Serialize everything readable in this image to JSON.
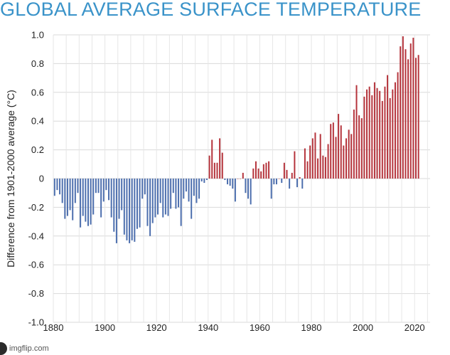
{
  "chart_data": {
    "type": "bar",
    "title": "GLOBAL AVERAGE SURFACE TEMPERATURE",
    "ylabel": "Difference from 1901-2000 average (°C)",
    "xlabel": "",
    "ylim": [
      -1.0,
      1.0
    ],
    "yticks": [
      "1.0",
      "0.8",
      "0.6",
      "0.4",
      "0.2",
      "0",
      "-0.2",
      "-0.4",
      "-0.6",
      "-0.8",
      "-1.0"
    ],
    "xticks": [
      "1880",
      "1900",
      "1920",
      "1940",
      "1960",
      "1980",
      "2000",
      "2020"
    ],
    "x_start": 1880,
    "grid": true,
    "colors": {
      "positive": "#b5343c",
      "negative": "#4d6fae",
      "title": "#3a93c9"
    },
    "values": [
      -0.12,
      -0.08,
      -0.11,
      -0.17,
      -0.28,
      -0.26,
      -0.22,
      -0.29,
      -0.17,
      -0.1,
      -0.34,
      -0.26,
      -0.3,
      -0.33,
      -0.32,
      -0.25,
      -0.1,
      -0.1,
      -0.27,
      -0.16,
      -0.08,
      -0.15,
      -0.27,
      -0.37,
      -0.45,
      -0.28,
      -0.22,
      -0.39,
      -0.43,
      -0.45,
      -0.43,
      -0.44,
      -0.35,
      -0.34,
      -0.14,
      -0.11,
      -0.33,
      -0.4,
      -0.31,
      -0.27,
      -0.25,
      -0.17,
      -0.27,
      -0.25,
      -0.26,
      -0.21,
      -0.1,
      -0.21,
      -0.2,
      -0.33,
      -0.14,
      -0.09,
      -0.16,
      -0.28,
      -0.12,
      -0.17,
      -0.14,
      -0.02,
      -0.03,
      -0.01,
      0.16,
      0.27,
      0.11,
      0.11,
      0.28,
      0.18,
      -0.01,
      -0.04,
      -0.05,
      -0.07,
      -0.16,
      0.0,
      0.0,
      0.04,
      -0.1,
      -0.14,
      -0.18,
      0.07,
      0.12,
      0.07,
      0.05,
      0.1,
      0.11,
      0.12,
      -0.14,
      -0.04,
      -0.04,
      0.0,
      -0.03,
      0.11,
      0.06,
      -0.07,
      0.04,
      0.19,
      -0.06,
      0.01,
      -0.07,
      0.21,
      0.12,
      0.23,
      0.28,
      0.32,
      0.14,
      0.31,
      0.16,
      0.15,
      0.24,
      0.38,
      0.39,
      0.29,
      0.45,
      0.37,
      0.23,
      0.28,
      0.34,
      0.31,
      0.48,
      0.65,
      0.44,
      0.42,
      0.57,
      0.62,
      0.64,
      0.58,
      0.67,
      0.63,
      0.61,
      0.54,
      0.64,
      0.72,
      0.56,
      0.62,
      0.67,
      0.74,
      0.92,
      0.99,
      0.9,
      0.83,
      0.94,
      0.98,
      0.84,
      0.86
    ]
  },
  "watermark": {
    "text": "imgflip.com"
  }
}
